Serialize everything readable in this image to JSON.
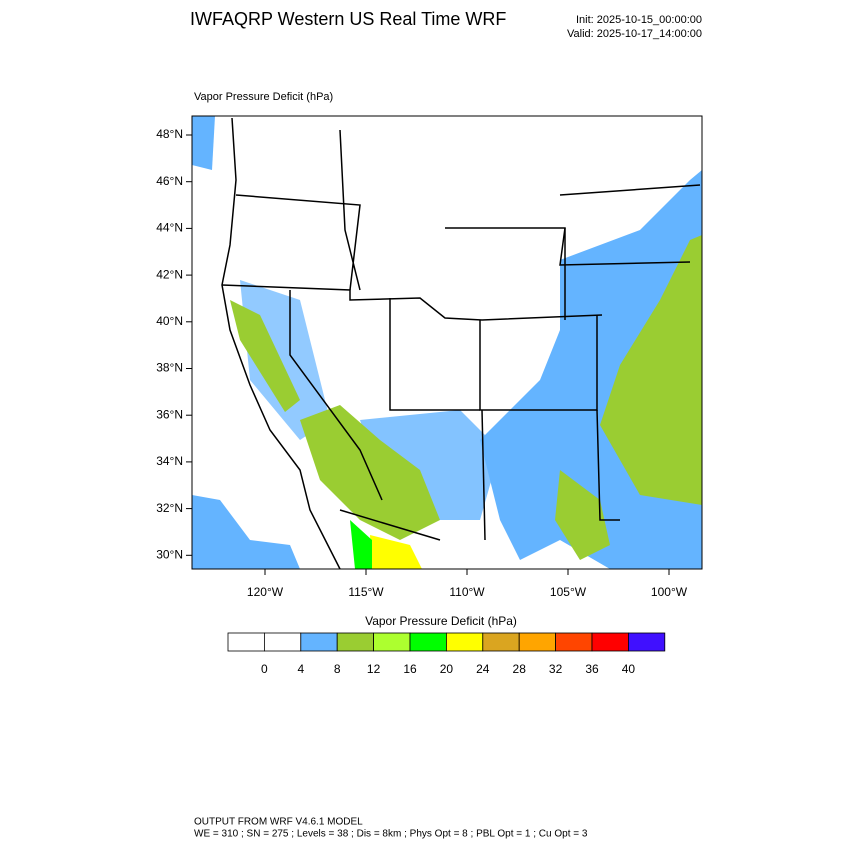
{
  "header": {
    "title": "IWFAQRP Western US Real Time WRF",
    "init": "Init: 2025-10-15_00:00:00",
    "valid": "Valid: 2025-10-17_14:00:00"
  },
  "map": {
    "title": "Vapor Pressure Deficit   (hPa)",
    "lat_labels": [
      "48°N",
      "46°N",
      "44°N",
      "42°N",
      "40°N",
      "38°N",
      "36°N",
      "34°N",
      "32°N",
      "30°N"
    ],
    "lon_labels": [
      "120°W",
      "115°W",
      "110°W",
      "105°W",
      "100°W"
    ]
  },
  "colorbar": {
    "title": "Vapor Pressure Deficit  (hPa)",
    "levels": [
      0,
      4,
      8,
      12,
      16,
      20,
      24,
      28,
      32,
      36,
      40
    ],
    "colors": [
      "#ffffff",
      "#ffffff",
      "#64b4ff",
      "#9acd32",
      "#adff2f",
      "#00ff00",
      "#ffff00",
      "#daa520",
      "#ffa500",
      "#ff4500",
      "#ff0000",
      "#4010ff"
    ]
  },
  "footer": {
    "line1": "OUTPUT FROM WRF V4.6.1 MODEL",
    "line2": "WE = 310 ; SN = 275 ; Levels = 38 ; Dis = 8km ; Phys Opt = 8 ; PBL Opt = 1 ; Cu Opt = 3"
  }
}
